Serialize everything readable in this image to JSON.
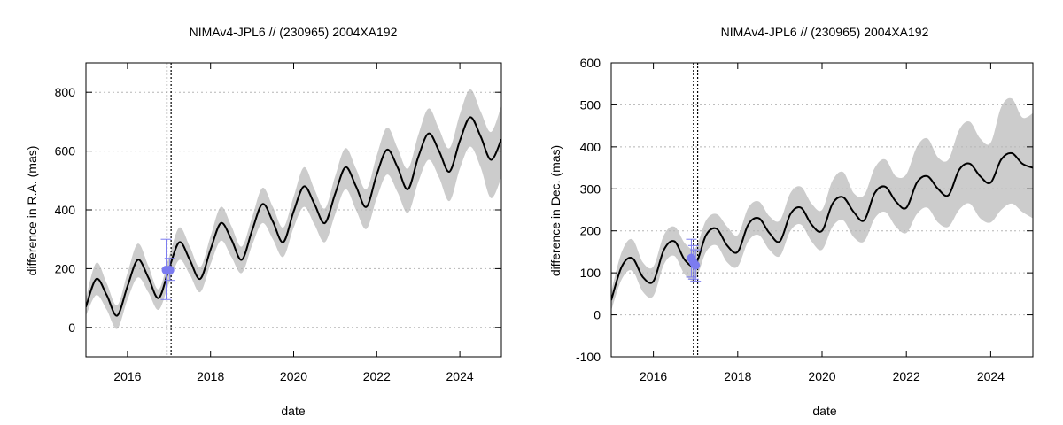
{
  "chart_data": [
    {
      "type": "line",
      "title": "NIMAv4-JPL6 // (230965) 2004XA192",
      "xlabel": "date",
      "ylabel": "difference in R.A. (mas)",
      "xlim": [
        2015.0,
        2025.0
      ],
      "ylim": [
        -100,
        900
      ],
      "x_ticks": [
        "2016",
        "2018",
        "2020",
        "2022",
        "2024"
      ],
      "y_ticks": [
        "0",
        "200",
        "400",
        "600",
        "800"
      ],
      "grid": "horizontal-dotted",
      "vertical_markers": [
        2016.95,
        2017.05
      ],
      "series": [
        {
          "kind": "line",
          "x": [
            2015.0,
            2015.25,
            2015.5,
            2015.75,
            2016.0,
            2016.25,
            2016.5,
            2016.75,
            2017.0,
            2017.25,
            2017.5,
            2017.75,
            2018.0,
            2018.25,
            2018.5,
            2018.75,
            2019.0,
            2019.25,
            2019.5,
            2019.75,
            2020.0,
            2020.25,
            2020.5,
            2020.75,
            2021.0,
            2021.25,
            2021.5,
            2021.75,
            2022.0,
            2022.25,
            2022.5,
            2022.75,
            2023.0,
            2023.25,
            2023.5,
            2023.75,
            2024.0,
            2024.25,
            2024.5,
            2024.75,
            2025.0
          ],
          "y": [
            70,
            165,
            110,
            40,
            140,
            230,
            170,
            100,
            200,
            290,
            230,
            165,
            265,
            355,
            300,
            230,
            330,
            420,
            360,
            290,
            395,
            480,
            420,
            355,
            455,
            545,
            480,
            410,
            520,
            605,
            545,
            470,
            580,
            660,
            600,
            530,
            635,
            715,
            650,
            570,
            640
          ]
        },
        {
          "kind": "band",
          "x": [
            2015.0,
            2015.25,
            2015.5,
            2015.75,
            2016.0,
            2016.25,
            2016.5,
            2016.75,
            2017.0,
            2017.25,
            2017.5,
            2017.75,
            2018.0,
            2018.25,
            2018.5,
            2018.75,
            2019.0,
            2019.25,
            2019.5,
            2019.75,
            2020.0,
            2020.25,
            2020.5,
            2020.75,
            2021.0,
            2021.25,
            2021.5,
            2021.75,
            2022.0,
            2022.25,
            2022.5,
            2022.75,
            2023.0,
            2023.25,
            2023.5,
            2023.75,
            2024.0,
            2024.25,
            2024.5,
            2024.75,
            2025.0
          ],
          "upper": [
            100,
            220,
            150,
            75,
            185,
            285,
            210,
            130,
            240,
            340,
            275,
            205,
            310,
            410,
            345,
            275,
            375,
            475,
            410,
            340,
            445,
            545,
            470,
            405,
            515,
            610,
            540,
            470,
            585,
            680,
            610,
            540,
            655,
            745,
            675,
            610,
            725,
            810,
            735,
            665,
            755
          ],
          "lower": [
            40,
            110,
            60,
            -5,
            95,
            170,
            120,
            60,
            150,
            230,
            180,
            120,
            215,
            295,
            240,
            185,
            280,
            355,
            300,
            240,
            340,
            410,
            350,
            290,
            385,
            470,
            400,
            335,
            440,
            520,
            460,
            390,
            495,
            570,
            510,
            430,
            540,
            615,
            545,
            440,
            510
          ]
        },
        {
          "kind": "points",
          "x": [
            2016.93,
            2017.02
          ],
          "y": [
            195,
            195
          ],
          "err_lo": [
            95,
            160
          ],
          "err_hi": [
            300,
            235
          ]
        }
      ],
      "colors": {
        "line": "#000000",
        "band": "#cccccc",
        "points": "#7b7bf0",
        "grid": "#b5b5b5"
      }
    },
    {
      "type": "line",
      "title": "NIMAv4-JPL6 // (230965) 2004XA192",
      "xlabel": "date",
      "ylabel": "difference in Dec. (mas)",
      "xlim": [
        2015.0,
        2025.0
      ],
      "ylim": [
        -100,
        600
      ],
      "x_ticks": [
        "2016",
        "2018",
        "2020",
        "2022",
        "2024"
      ],
      "y_ticks": [
        "-100",
        "0",
        "100",
        "200",
        "300",
        "400",
        "500",
        "600"
      ],
      "grid": "horizontal-dotted",
      "vertical_markers": [
        2016.95,
        2017.05
      ],
      "series": [
        {
          "kind": "line",
          "x": [
            2015.0,
            2015.25,
            2015.5,
            2015.75,
            2016.0,
            2016.25,
            2016.5,
            2016.75,
            2017.0,
            2017.25,
            2017.5,
            2017.75,
            2018.0,
            2018.25,
            2018.5,
            2018.75,
            2019.0,
            2019.25,
            2019.5,
            2019.75,
            2020.0,
            2020.25,
            2020.5,
            2020.75,
            2021.0,
            2021.25,
            2021.5,
            2021.75,
            2022.0,
            2022.25,
            2022.5,
            2022.75,
            2023.0,
            2023.25,
            2023.5,
            2023.75,
            2024.0,
            2024.25,
            2024.5,
            2024.75,
            2025.0
          ],
          "y": [
            35,
            115,
            135,
            90,
            80,
            155,
            175,
            130,
            120,
            190,
            205,
            165,
            150,
            215,
            230,
            195,
            175,
            240,
            255,
            215,
            200,
            265,
            280,
            245,
            225,
            290,
            305,
            270,
            255,
            315,
            330,
            300,
            285,
            345,
            360,
            330,
            315,
            370,
            385,
            360,
            350
          ]
        },
        {
          "kind": "band",
          "x": [
            2015.0,
            2015.25,
            2015.5,
            2015.75,
            2016.0,
            2016.25,
            2016.5,
            2016.75,
            2017.0,
            2017.25,
            2017.5,
            2017.75,
            2018.0,
            2018.25,
            2018.5,
            2018.75,
            2019.0,
            2019.25,
            2019.5,
            2019.75,
            2020.0,
            2020.25,
            2020.5,
            2020.75,
            2021.0,
            2021.25,
            2021.5,
            2021.75,
            2022.0,
            2022.25,
            2022.5,
            2022.75,
            2023.0,
            2023.25,
            2023.5,
            2023.75,
            2024.0,
            2024.25,
            2024.5,
            2024.75,
            2025.0
          ],
          "upper": [
            55,
            150,
            180,
            125,
            115,
            190,
            210,
            170,
            160,
            225,
            240,
            210,
            190,
            255,
            270,
            235,
            225,
            290,
            305,
            265,
            250,
            320,
            340,
            290,
            285,
            350,
            370,
            330,
            335,
            400,
            420,
            375,
            370,
            440,
            460,
            420,
            410,
            495,
            515,
            470,
            480
          ],
          "lower": [
            10,
            85,
            105,
            55,
            45,
            120,
            140,
            95,
            85,
            150,
            165,
            125,
            115,
            175,
            190,
            155,
            140,
            200,
            215,
            175,
            155,
            210,
            225,
            185,
            175,
            230,
            245,
            210,
            195,
            240,
            255,
            220,
            210,
            250,
            265,
            230,
            220,
            250,
            265,
            245,
            230
          ]
        },
        {
          "kind": "points",
          "x": [
            2016.9,
            2016.95,
            2017.0
          ],
          "y": [
            135,
            125,
            118
          ],
          "err_lo": [
            90,
            85,
            80
          ],
          "err_hi": [
            180,
            165,
            155
          ]
        }
      ],
      "colors": {
        "line": "#000000",
        "band": "#cccccc",
        "points": "#7b7bf0",
        "grid": "#b5b5b5"
      }
    }
  ]
}
